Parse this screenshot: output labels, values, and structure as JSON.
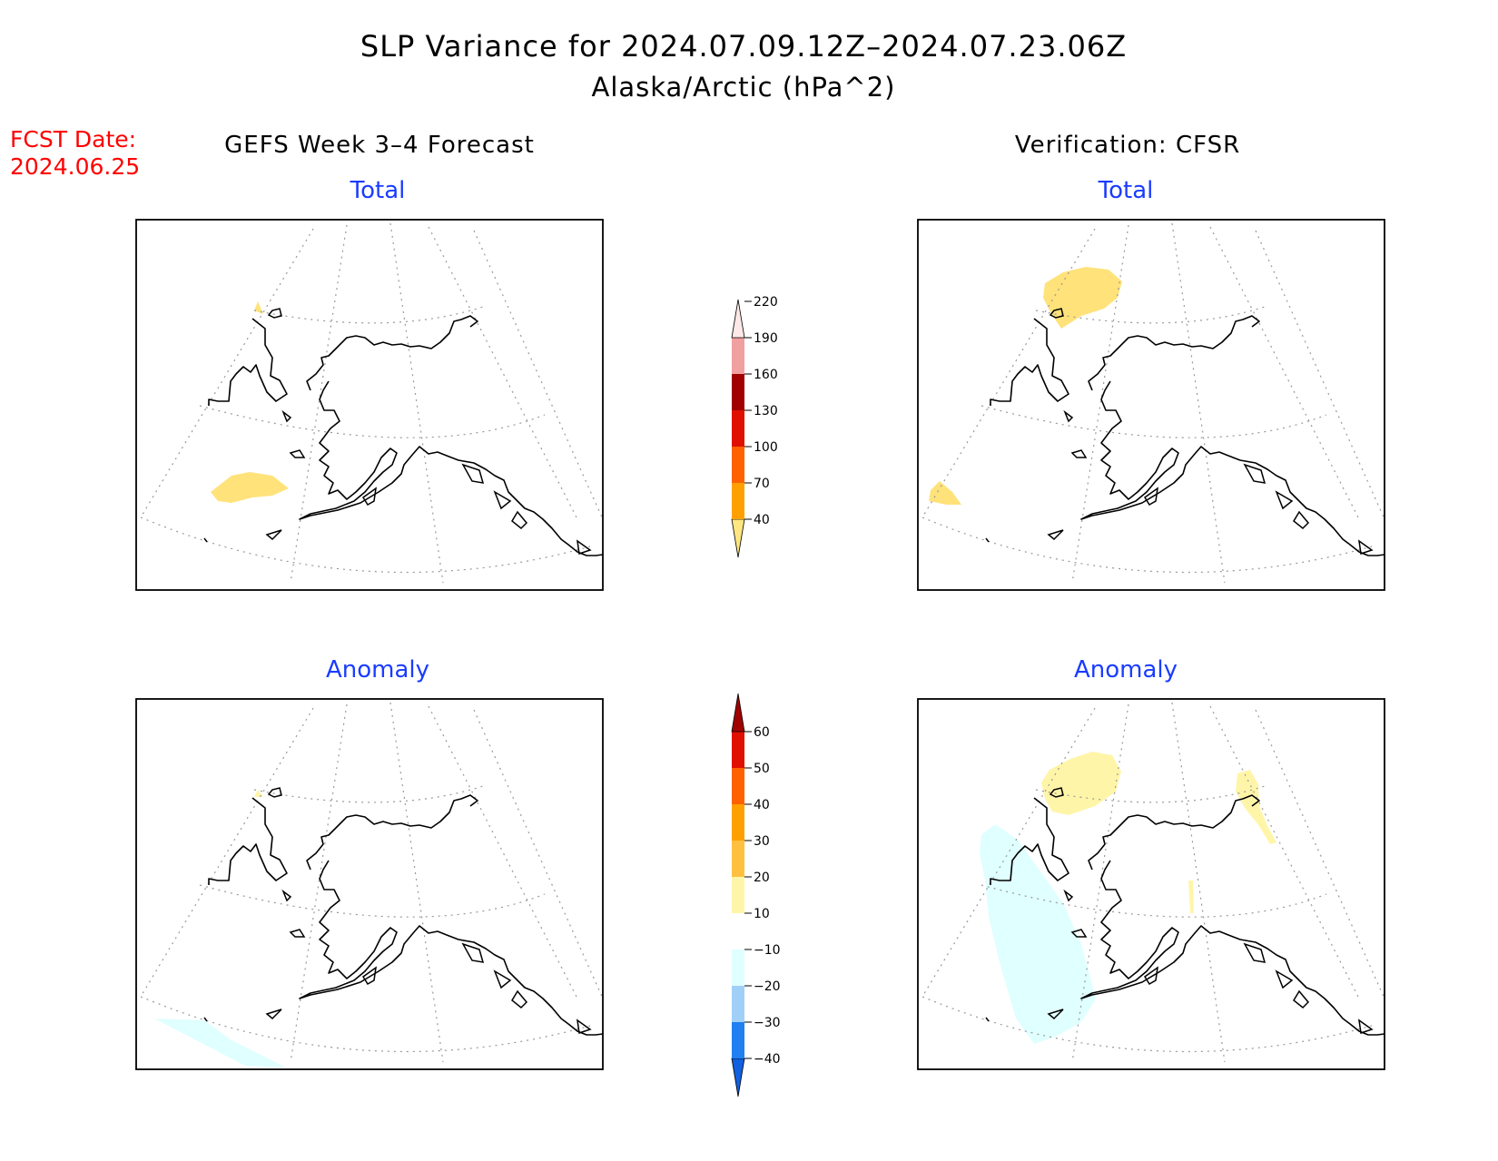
{
  "title": {
    "line1": "SLP Variance for 2024.07.09.12Z–2024.07.23.06Z",
    "line2": "Alaska/Arctic (hPa^2)"
  },
  "fcst": {
    "label": "FCST Date:",
    "date": "2024.06.25"
  },
  "columns": {
    "left": "GEFS Week 3–4 Forecast",
    "right": "Verification: CFSR"
  },
  "panels": {
    "total_label": "Total",
    "anomaly_label": "Anomaly"
  },
  "colorbars": {
    "total": {
      "labels": [
        "40",
        "70",
        "100",
        "130",
        "160",
        "190",
        "220"
      ],
      "colors": [
        "#ffe680",
        "#ffa000",
        "#ff6000",
        "#e01000",
        "#a00000",
        "#f0a0a0",
        "#ffe8e8"
      ]
    },
    "anomaly": {
      "labels": [
        "−40",
        "−30",
        "−20",
        "−10",
        "10",
        "20",
        "30",
        "40",
        "50",
        "60"
      ],
      "colors": [
        "#1060e0",
        "#2080f0",
        "#a0d0f8",
        "#e0ffff",
        "#ffffff",
        "#fff5a8",
        "#ffc040",
        "#ffa000",
        "#ff6000",
        "#e01000",
        "#a00000"
      ]
    }
  },
  "colors": {
    "title_text": "#000000",
    "fcst_text": "#ff0000",
    "panel_label": "#1a3cff",
    "shade_total_low": "#ffe27a",
    "shade_anom_pos": "#fff5a8",
    "shade_anom_neg": "#e0ffff"
  }
}
